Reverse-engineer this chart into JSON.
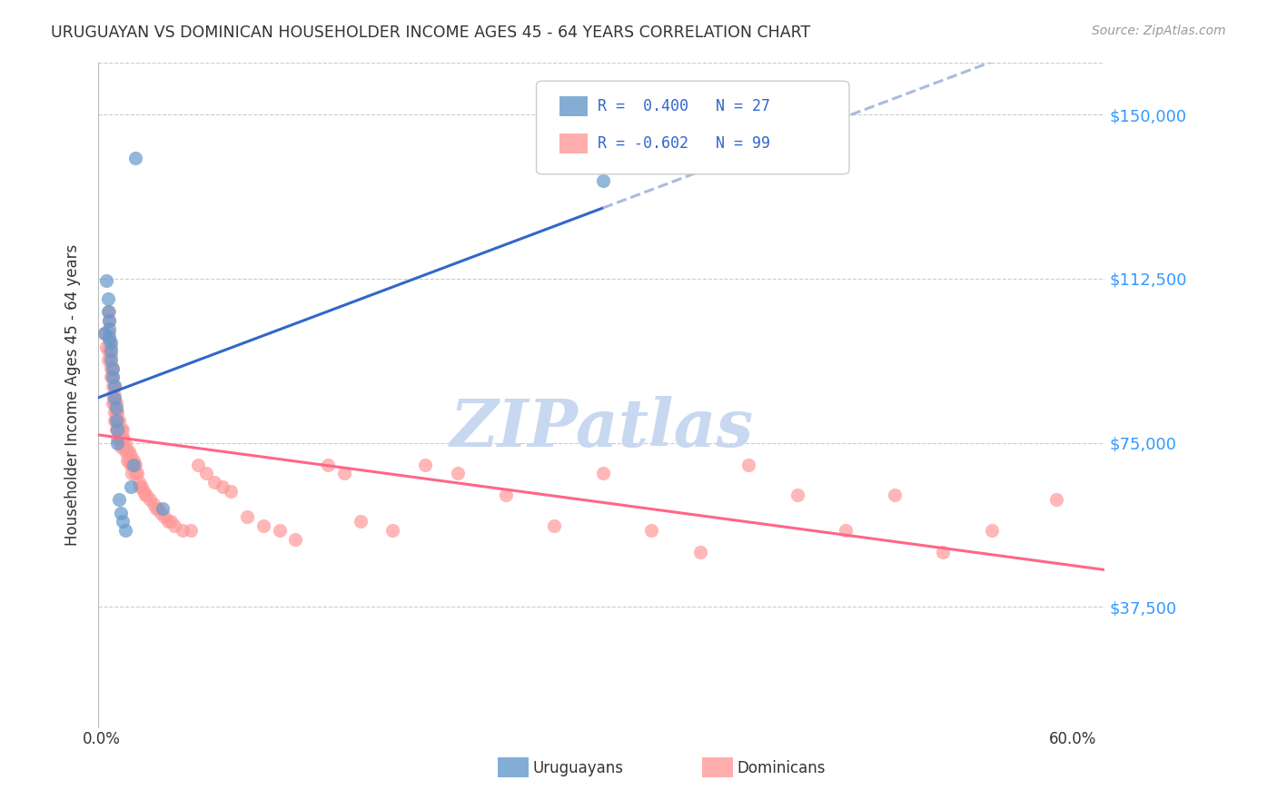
{
  "title": "URUGUAYAN VS DOMINICAN HOUSEHOLDER INCOME AGES 45 - 64 YEARS CORRELATION CHART",
  "source": "Source: ZipAtlas.com",
  "ylabel": "Householder Income Ages 45 - 64 years",
  "ytick_labels": [
    "$37,500",
    "$75,000",
    "$112,500",
    "$150,000"
  ],
  "ytick_values": [
    37500,
    75000,
    112500,
    150000
  ],
  "ymin": 10000,
  "ymax": 162000,
  "xmin": -0.002,
  "xmax": 0.62,
  "R_uruguayan": 0.4,
  "N_uruguayan": 27,
  "R_dominican": -0.602,
  "N_dominican": 99,
  "color_uruguayan": "#6699CC",
  "color_dominican": "#FF9999",
  "color_blue_line": "#3366CC",
  "color_pink_line": "#FF6688",
  "color_dashed_line": "#AABBDD",
  "watermark_color": "#C8D8F0",
  "uruguayan_x": [
    0.002,
    0.003,
    0.004,
    0.004,
    0.005,
    0.005,
    0.005,
    0.006,
    0.006,
    0.006,
    0.007,
    0.007,
    0.008,
    0.008,
    0.009,
    0.009,
    0.01,
    0.01,
    0.011,
    0.012,
    0.013,
    0.015,
    0.018,
    0.02,
    0.021,
    0.038,
    0.31
  ],
  "uruguayan_y": [
    100000,
    112000,
    108000,
    105000,
    103000,
    101000,
    99000,
    98000,
    96000,
    94000,
    92000,
    90000,
    88000,
    85000,
    83000,
    80000,
    78000,
    75000,
    62000,
    59000,
    57000,
    55000,
    65000,
    70000,
    140000,
    60000,
    135000
  ],
  "dominican_x": [
    0.002,
    0.003,
    0.004,
    0.004,
    0.005,
    0.005,
    0.005,
    0.005,
    0.006,
    0.006,
    0.006,
    0.006,
    0.006,
    0.007,
    0.007,
    0.007,
    0.007,
    0.007,
    0.008,
    0.008,
    0.008,
    0.008,
    0.008,
    0.009,
    0.009,
    0.009,
    0.009,
    0.01,
    0.01,
    0.01,
    0.01,
    0.011,
    0.011,
    0.011,
    0.012,
    0.012,
    0.012,
    0.013,
    0.013,
    0.014,
    0.014,
    0.015,
    0.015,
    0.016,
    0.016,
    0.017,
    0.017,
    0.018,
    0.018,
    0.019,
    0.019,
    0.02,
    0.021,
    0.021,
    0.022,
    0.023,
    0.024,
    0.025,
    0.026,
    0.027,
    0.028,
    0.03,
    0.032,
    0.034,
    0.035,
    0.037,
    0.039,
    0.041,
    0.043,
    0.045,
    0.05,
    0.055,
    0.06,
    0.065,
    0.07,
    0.075,
    0.08,
    0.09,
    0.1,
    0.11,
    0.12,
    0.14,
    0.15,
    0.16,
    0.18,
    0.2,
    0.22,
    0.25,
    0.28,
    0.31,
    0.34,
    0.37,
    0.4,
    0.43,
    0.46,
    0.49,
    0.52,
    0.55,
    0.59
  ],
  "dominican_y": [
    100000,
    97000,
    96000,
    94000,
    105000,
    103000,
    100000,
    98000,
    97000,
    95000,
    93000,
    92000,
    90000,
    92000,
    90000,
    88000,
    86000,
    84000,
    88000,
    86000,
    84000,
    82000,
    80000,
    84000,
    82000,
    80000,
    78000,
    82000,
    80000,
    78000,
    76000,
    80000,
    78000,
    76000,
    78000,
    76000,
    74000,
    78000,
    76000,
    76000,
    74000,
    75000,
    73000,
    73000,
    71000,
    73000,
    71000,
    72000,
    70000,
    70000,
    68000,
    71000,
    70000,
    68000,
    68000,
    66000,
    65000,
    65000,
    64000,
    63000,
    63000,
    62000,
    61000,
    60000,
    60000,
    59000,
    58000,
    57000,
    57000,
    56000,
    55000,
    55000,
    70000,
    68000,
    66000,
    65000,
    64000,
    58000,
    56000,
    55000,
    53000,
    70000,
    68000,
    57000,
    55000,
    70000,
    68000,
    63000,
    56000,
    68000,
    55000,
    50000,
    70000,
    63000,
    55000,
    63000,
    50000,
    55000,
    62000
  ]
}
